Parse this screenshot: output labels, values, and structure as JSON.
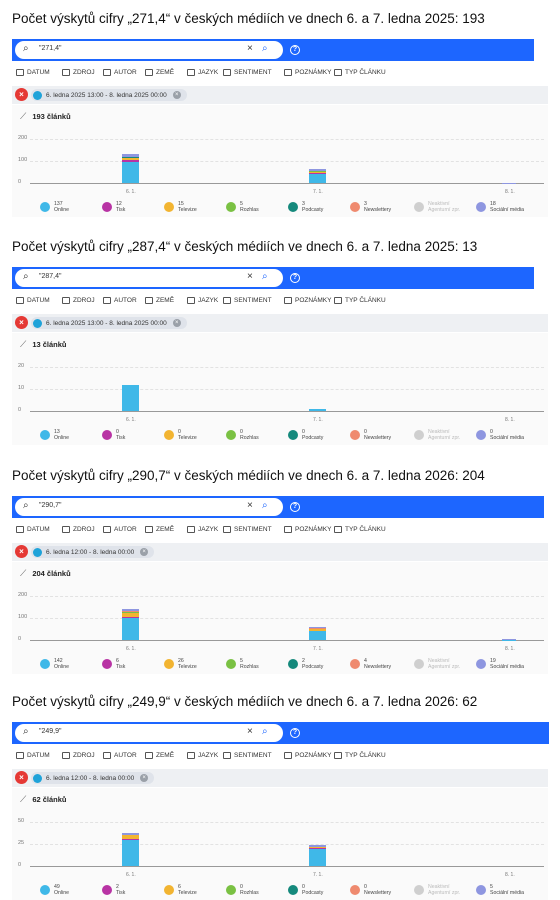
{
  "tool_ui": {
    "toolbar": [
      "DATUM",
      "ZDROJ",
      "AUTOR",
      "ZEMĚ",
      "JAZYK",
      "SENTIMENT",
      "POZNÁMKY",
      "TYP ČLÁNKU"
    ],
    "x_ticks": [
      "6. 1.",
      "7. 1.",
      "8. 1."
    ],
    "legend_labels": [
      {
        "line1": "Online",
        "line2": "",
        "color": "#3fb8e8"
      },
      {
        "line1": "Tisk",
        "line2": "",
        "color": "#b833a4"
      },
      {
        "line1": "Televize",
        "line2": "",
        "color": "#f2b431"
      },
      {
        "line1": "Rozhlas",
        "line2": "",
        "color": "#7ac143"
      },
      {
        "line1": "Podcasty",
        "line2": "",
        "color": "#15897c"
      },
      {
        "line1": "Newslettery",
        "line2": "",
        "color": "#ef8a6f"
      },
      {
        "line1": "Neaktivní",
        "line2": "Agenturní zpr.",
        "color": "#cfcfcf"
      },
      {
        "line1": "Sociální média",
        "line2": "",
        "color": "#8e96e0"
      }
    ]
  },
  "sections": [
    {
      "heading": "Počet výskytů cifry „271,4“ v českých médiích ve dnech 6. a 7. ledna 2025: 193",
      "query": "\"271,4\"",
      "date_range": "6. ledna 2025 13:00 - 8. ledna 2025 00:00",
      "count_label": "193 článků",
      "y_ticks": [
        "200",
        "100",
        "0"
      ],
      "legend_counts": [
        "137",
        "12",
        "15",
        "5",
        "3",
        "3",
        "",
        "18"
      ],
      "chart_data": {
        "type": "bar",
        "categories": [
          "6. 1.",
          "7. 1.",
          "8. 1."
        ],
        "ylim": [
          0,
          200
        ],
        "stacked": true,
        "series": [
          {
            "name": "Online",
            "values": [
              97,
              40,
              0
            ]
          },
          {
            "name": "Tisk",
            "values": [
              6,
              6,
              0
            ]
          },
          {
            "name": "Televize",
            "values": [
              10,
              5,
              0
            ]
          },
          {
            "name": "Rozhlas",
            "values": [
              3,
              2,
              0
            ]
          },
          {
            "name": "Podcasty",
            "values": [
              2,
              1,
              0
            ]
          },
          {
            "name": "Newslettery",
            "values": [
              2,
              1,
              0
            ]
          },
          {
            "name": "Sociální média",
            "values": [
              10,
              7,
              1
            ]
          }
        ]
      }
    },
    {
      "heading": "Počet výskytů cifry „287,4“ v českých médiích ve dnech 6. a 7. ledna 2025: 13",
      "query": "\"287,4\"",
      "date_range": "6. ledna 2025 13:00 - 8. ledna 2025 00:00",
      "count_label": "13 článků",
      "y_ticks": [
        "20",
        "10",
        "0"
      ],
      "legend_counts": [
        "13",
        "0",
        "0",
        "0",
        "0",
        "0",
        "",
        "0"
      ],
      "chart_data": {
        "type": "bar",
        "categories": [
          "6. 1.",
          "7. 1.",
          "8. 1."
        ],
        "ylim": [
          0,
          20
        ],
        "stacked": true,
        "series": [
          {
            "name": "Online",
            "values": [
              12,
              1,
              0
            ]
          }
        ]
      }
    },
    {
      "heading": "Počet výskytů cifry „290,7“ v českých médiích ve dnech 6. a 7. ledna 2026: 204",
      "query": "\"290,7\"",
      "date_range": "6. ledna 12:00 - 8. ledna 00:00",
      "count_label": "204 článků",
      "y_ticks": [
        "200",
        "100",
        "0"
      ],
      "legend_counts": [
        "142",
        "6",
        "26",
        "5",
        "2",
        "4",
        "",
        "19"
      ],
      "chart_data": {
        "type": "bar",
        "categories": [
          "6. 1.",
          "7. 1.",
          "8. 1."
        ],
        "ylim": [
          0,
          200
        ],
        "stacked": true,
        "series": [
          {
            "name": "Online",
            "values": [
              100,
              40,
              2
            ]
          },
          {
            "name": "Tisk",
            "values": [
              4,
              2,
              0
            ]
          },
          {
            "name": "Televize",
            "values": [
              20,
              6,
              0
            ]
          },
          {
            "name": "Rozhlas",
            "values": [
              3,
              2,
              0
            ]
          },
          {
            "name": "Podcasty",
            "values": [
              1,
              1,
              0
            ]
          },
          {
            "name": "Newslettery",
            "values": [
              2,
              2,
              0
            ]
          },
          {
            "name": "Sociální média",
            "values": [
              12,
              6,
              1
            ]
          }
        ]
      }
    },
    {
      "heading": "Počet výskytů cifry „249,9“ v českých médiích ve dnech 6. a 7. ledna 2026: 62",
      "query": "\"249,9\"",
      "date_range": "6. ledna 12:00 - 8. ledna 00:00",
      "count_label": "62 článků",
      "y_ticks": [
        "50",
        "25",
        "0"
      ],
      "legend_counts": [
        "49",
        "2",
        "6",
        "0",
        "0",
        "0",
        "",
        "5"
      ],
      "chart_data": {
        "type": "bar",
        "categories": [
          "6. 1.",
          "7. 1.",
          "8. 1."
        ],
        "ylim": [
          0,
          50
        ],
        "stacked": true,
        "series": [
          {
            "name": "Online",
            "values": [
              30,
              19,
              0
            ]
          },
          {
            "name": "Tisk",
            "values": [
              1,
              1,
              0
            ]
          },
          {
            "name": "Televize",
            "values": [
              4,
              2,
              0
            ]
          },
          {
            "name": "Sociální média",
            "values": [
              3,
              2,
              0
            ]
          }
        ]
      }
    }
  ]
}
